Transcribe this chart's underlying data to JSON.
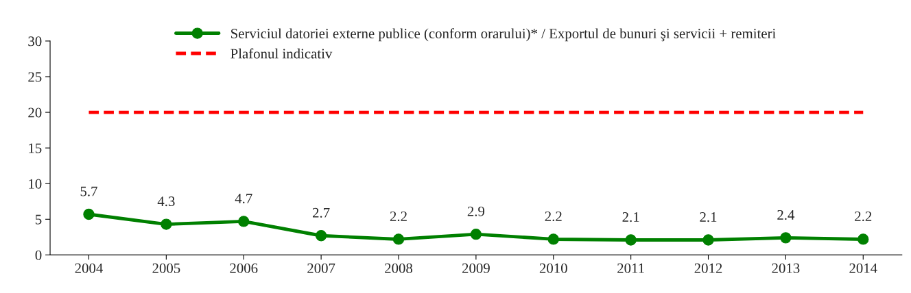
{
  "chart_data": {
    "type": "line",
    "categories": [
      "2004",
      "2005",
      "2006",
      "2007",
      "2008",
      "2009",
      "2010",
      "2011",
      "2012",
      "2013",
      "2014"
    ],
    "series": [
      {
        "name": "Serviciul datoriei externe publice (conform orarului)* / Exportul de bunuri şi servicii + remiteri",
        "color": "#008000",
        "values": [
          5.7,
          4.3,
          4.7,
          2.7,
          2.2,
          2.9,
          2.2,
          2.1,
          2.1,
          2.4,
          2.2
        ],
        "value_labels": [
          "5.7",
          "4.3",
          "4.7",
          "2.7",
          "2.2",
          "2.9",
          "2.2",
          "2.1",
          "2.1",
          "2.4",
          "2.2"
        ],
        "marker": "circle",
        "line_style": "solid"
      },
      {
        "name": "Plafonul indicativ",
        "color": "#ff0000",
        "values": [
          20,
          20,
          20,
          20,
          20,
          20,
          20,
          20,
          20,
          20,
          20
        ],
        "marker": "none",
        "line_style": "dashed"
      }
    ],
    "ylim": [
      0,
      30
    ],
    "yticks": [
      0,
      5,
      10,
      15,
      20,
      25,
      30
    ],
    "grid": false,
    "legend": "top"
  }
}
